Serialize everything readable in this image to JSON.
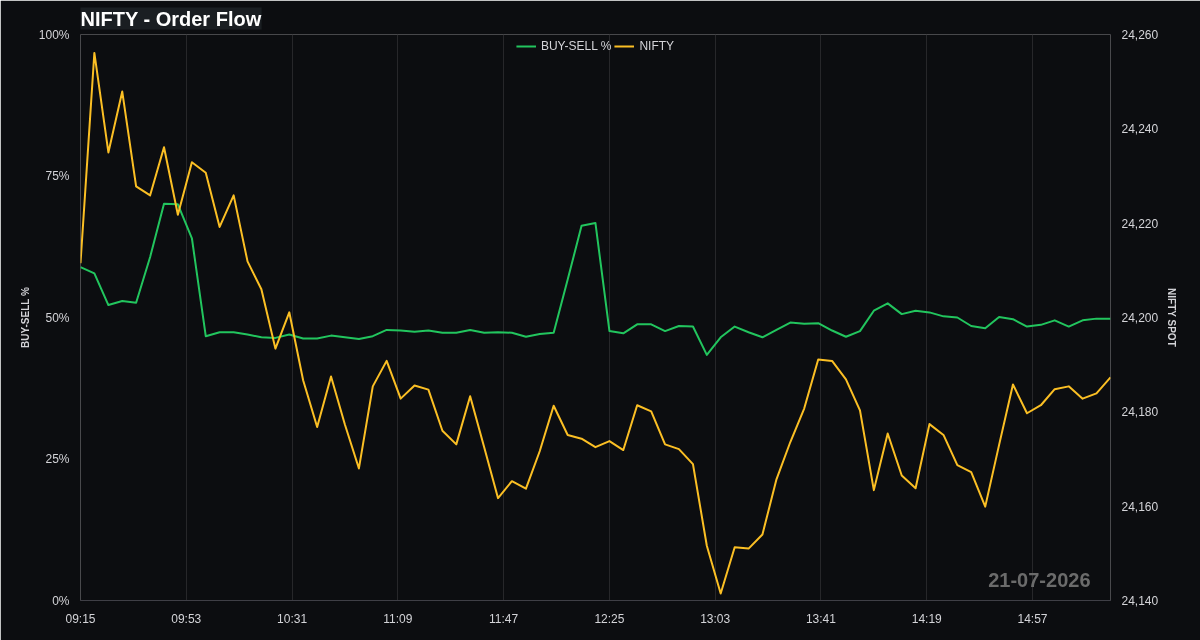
{
  "chart_data": {
    "type": "line",
    "title": "NIFTY - Order Flow",
    "x": [
      9.25,
      9.333,
      9.417,
      9.5,
      9.583,
      9.667,
      9.75,
      9.833,
      9.917,
      10,
      10.083,
      10.167,
      10.25,
      10.333,
      10.417,
      10.5,
      10.583,
      10.667,
      10.75,
      10.833,
      10.917,
      11,
      11.083,
      11.167,
      11.25,
      11.333,
      11.417,
      11.5,
      11.583,
      11.667,
      11.75,
      11.833,
      11.917,
      12,
      12.083,
      12.167,
      12.25,
      12.333,
      12.417,
      12.5,
      12.583,
      12.667,
      12.75,
      12.833,
      12.917,
      13,
      13.083,
      13.167,
      13.25,
      13.333,
      13.417,
      13.5,
      13.583,
      13.667,
      13.75,
      13.833,
      13.917,
      14,
      14.083,
      14.167,
      14.25,
      14.333,
      14.417,
      14.5,
      14.583,
      14.667,
      14.75,
      14.833,
      14.917,
      15,
      15.083,
      15.167,
      15.25,
      15.333,
      15.417
    ],
    "series": [
      {
        "name": "BUY-SELL %",
        "color": "#22c55e",
        "values": [
          58.9,
          57.8,
          52.2,
          52.9,
          52.6,
          60.7,
          70.1,
          70.0,
          64.0,
          46.7,
          47.4,
          47.4,
          47.0,
          46.5,
          46.4,
          47.0,
          46.3,
          46.3,
          46.8,
          46.5,
          46.2,
          46.7,
          47.8,
          47.7,
          47.5,
          47.7,
          47.3,
          47.3,
          47.8,
          47.3,
          47.4,
          47.3,
          46.6,
          47.1,
          47.3,
          56.7,
          66.2,
          66.7,
          47.6,
          47.2,
          48.8,
          48.8,
          47.6,
          48.5,
          48.4,
          43.4,
          46.5,
          48.4,
          47.4,
          46.5,
          47.8,
          49.1,
          48.9,
          49.0,
          47.7,
          46.6,
          47.6,
          51.2,
          52.5,
          50.6,
          51.2,
          50.9,
          50.2,
          50.0,
          48.5,
          48.1,
          50.1,
          49.7,
          48.4,
          48.7,
          49.5,
          48.4,
          49.5,
          49.8,
          49.8
        ]
      },
      {
        "name": "NIFTY",
        "color": "#fbbf24",
        "axis": "y2",
        "values": [
          24211.5,
          24256.1,
          24235.0,
          24247.9,
          24227.8,
          24225.9,
          24236.1,
          24221.8,
          24232.9,
          24230.7,
          24219.2,
          24225.9,
          24211.9,
          24206.0,
          24193.4,
          24201.1,
          24186.7,
          24176.8,
          24187.5,
          24177.3,
          24168.0,
          24185.4,
          24190.8,
          24182.8,
          24185.6,
          24184.7,
          24176.0,
          24173.1,
          24183.3,
          24172.5,
          24161.7,
          24165.3,
          24163.7,
          24171.7,
          24181.3,
          24175.1,
          24174.3,
          24172.5,
          24173.8,
          24171.9,
          24181.4,
          24180.1,
          24173.1,
          24172.1,
          24168.9,
          24151.6,
          24141.5,
          24151.3,
          24151.0,
          24154.0,
          24165.7,
          24173.6,
          24180.7,
          24191.1,
          24190.8,
          24186.9,
          24180.3,
          24163.4,
          24175.4,
          24166.5,
          24163.8,
          24177.4,
          24175.1,
          24168.7,
          24167.2,
          24159.9,
          24173.0,
          24185.8,
          24179.7,
          24181.4,
          24184.8,
          24185.4,
          24182.8,
          24183.9,
          24187.3
        ]
      }
    ],
    "xlim": [
      9.25,
      15.417
    ],
    "xticks": [
      {
        "value": 9.25,
        "label": "09:15"
      },
      {
        "value": 9.883,
        "label": "09:53"
      },
      {
        "value": 10.517,
        "label": "10:31"
      },
      {
        "value": 11.15,
        "label": "11:09"
      },
      {
        "value": 11.783,
        "label": "11:47"
      },
      {
        "value": 12.417,
        "label": "12:25"
      },
      {
        "value": 13.05,
        "label": "13:03"
      },
      {
        "value": 13.683,
        "label": "13:41"
      },
      {
        "value": 14.317,
        "label": "14:19"
      },
      {
        "value": 14.95,
        "label": "14:57"
      }
    ],
    "ylim": [
      0,
      100
    ],
    "yticks": [
      {
        "value": 0,
        "label": "0%"
      },
      {
        "value": 25,
        "label": "25%"
      },
      {
        "value": 50,
        "label": "50%"
      },
      {
        "value": 75,
        "label": "75%"
      },
      {
        "value": 100,
        "label": "100%"
      }
    ],
    "y2lim": [
      24140,
      24260
    ],
    "y2ticks": [
      {
        "value": 24140,
        "label": "24,140"
      },
      {
        "value": 24160,
        "label": "24,160"
      },
      {
        "value": 24180,
        "label": "24,180"
      },
      {
        "value": 24200,
        "label": "24,200"
      },
      {
        "value": 24220,
        "label": "24,220"
      },
      {
        "value": 24240,
        "label": "24,240"
      },
      {
        "value": 24260,
        "label": "24,260"
      }
    ],
    "ylabel": "BUY-SELL %",
    "y2label": "NIFTY SPOT",
    "grid": "x",
    "legend": "top",
    "marker": "none",
    "line_style": "solid",
    "annotations": [
      "21-07-2026"
    ]
  }
}
